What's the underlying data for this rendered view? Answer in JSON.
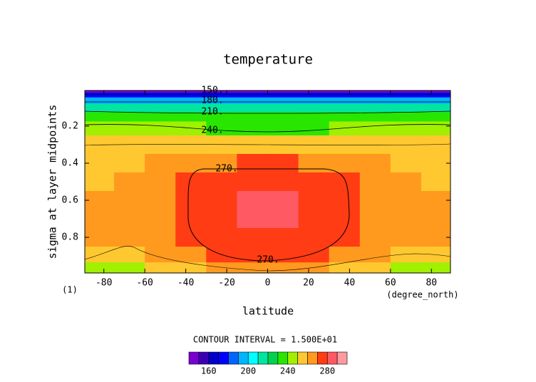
{
  "chart_data": {
    "type": "contour",
    "title": "temperature",
    "xlabel": "latitude",
    "ylabel": "sigma at layer midpoints",
    "x_units": "(degree_north)",
    "y_units": "(1)",
    "contour_interval": "CONTOUR INTERVAL = 1.500E+01",
    "xlim": [
      -89.3,
      89.3
    ],
    "ylim": [
      0.008,
      0.992
    ],
    "y_inverted": true,
    "xticks": [
      -80,
      -60,
      -40,
      -20,
      0,
      20,
      40,
      60,
      80
    ],
    "yticks": [
      0.2,
      0.4,
      0.6,
      0.8
    ],
    "x": [
      -82.5,
      -67.5,
      -52.5,
      -37.5,
      -22.5,
      -7.5,
      7.5,
      22.5,
      37.5,
      52.5,
      67.5,
      82.5
    ],
    "y": [
      0.01,
      0.03,
      0.06,
      0.1,
      0.15,
      0.2,
      0.3,
      0.4,
      0.5,
      0.6,
      0.7,
      0.8,
      0.9,
      0.97
    ],
    "z": [
      [
        148,
        148,
        148,
        148,
        148,
        148,
        148,
        148,
        148,
        148,
        148,
        148
      ],
      [
        172,
        172,
        172,
        172,
        172,
        172,
        172,
        172,
        172,
        172,
        172,
        172
      ],
      [
        198,
        198,
        198,
        198,
        198,
        198,
        198,
        198,
        198,
        198,
        198,
        198
      ],
      [
        214,
        214,
        214,
        214,
        214,
        214,
        214,
        214,
        214,
        214,
        214,
        214
      ],
      [
        232,
        232,
        232,
        232,
        232,
        232,
        232,
        232,
        232,
        232,
        232,
        232
      ],
      [
        243,
        242,
        241,
        240,
        239,
        239,
        239,
        239,
        240,
        241,
        242,
        243
      ],
      [
        254,
        253,
        253,
        254,
        255,
        255,
        255,
        255,
        254,
        253,
        253,
        254
      ],
      [
        258,
        259,
        262,
        266,
        269,
        270,
        270,
        269,
        266,
        262,
        259,
        258
      ],
      [
        259,
        262,
        266,
        272,
        275,
        276,
        276,
        275,
        272,
        266,
        262,
        259
      ],
      [
        261,
        262,
        266,
        272,
        279,
        283,
        283,
        279,
        272,
        266,
        262,
        261
      ],
      [
        262,
        262,
        266,
        273,
        279,
        283,
        283,
        279,
        273,
        266,
        262,
        262
      ],
      [
        262,
        261,
        265,
        270,
        275,
        277,
        277,
        275,
        270,
        265,
        261,
        262
      ],
      [
        256,
        257,
        260,
        266,
        271,
        272,
        272,
        271,
        266,
        260,
        257,
        256
      ],
      [
        246,
        248,
        253,
        257,
        260,
        261,
        261,
        260,
        257,
        253,
        248,
        246
      ]
    ],
    "contour_labels": [
      {
        "value": 150,
        "label": "150."
      },
      {
        "value": 180,
        "label": "180."
      },
      {
        "value": 210,
        "label": "210."
      },
      {
        "value": 240,
        "label": "240."
      },
      {
        "value": 270,
        "label": "270."
      },
      {
        "value": 270,
        "label": "270."
      }
    ],
    "levels": [
      140,
      150,
      160,
      170,
      180,
      190,
      200,
      210,
      220,
      230,
      240,
      250,
      260,
      270,
      280,
      290,
      300
    ],
    "colors": [
      "#7a00d0",
      "#3c00b4",
      "#0000c8",
      "#0000ff",
      "#0064ff",
      "#00b4ff",
      "#00ffff",
      "#00e6a0",
      "#00d250",
      "#28e600",
      "#a0f000",
      "#ffc830",
      "#ff9a1e",
      "#ff3c14",
      "#ff5a64",
      "#ff9aa0"
    ],
    "colorbar_ticks": [
      160,
      200,
      240,
      280
    ]
  }
}
